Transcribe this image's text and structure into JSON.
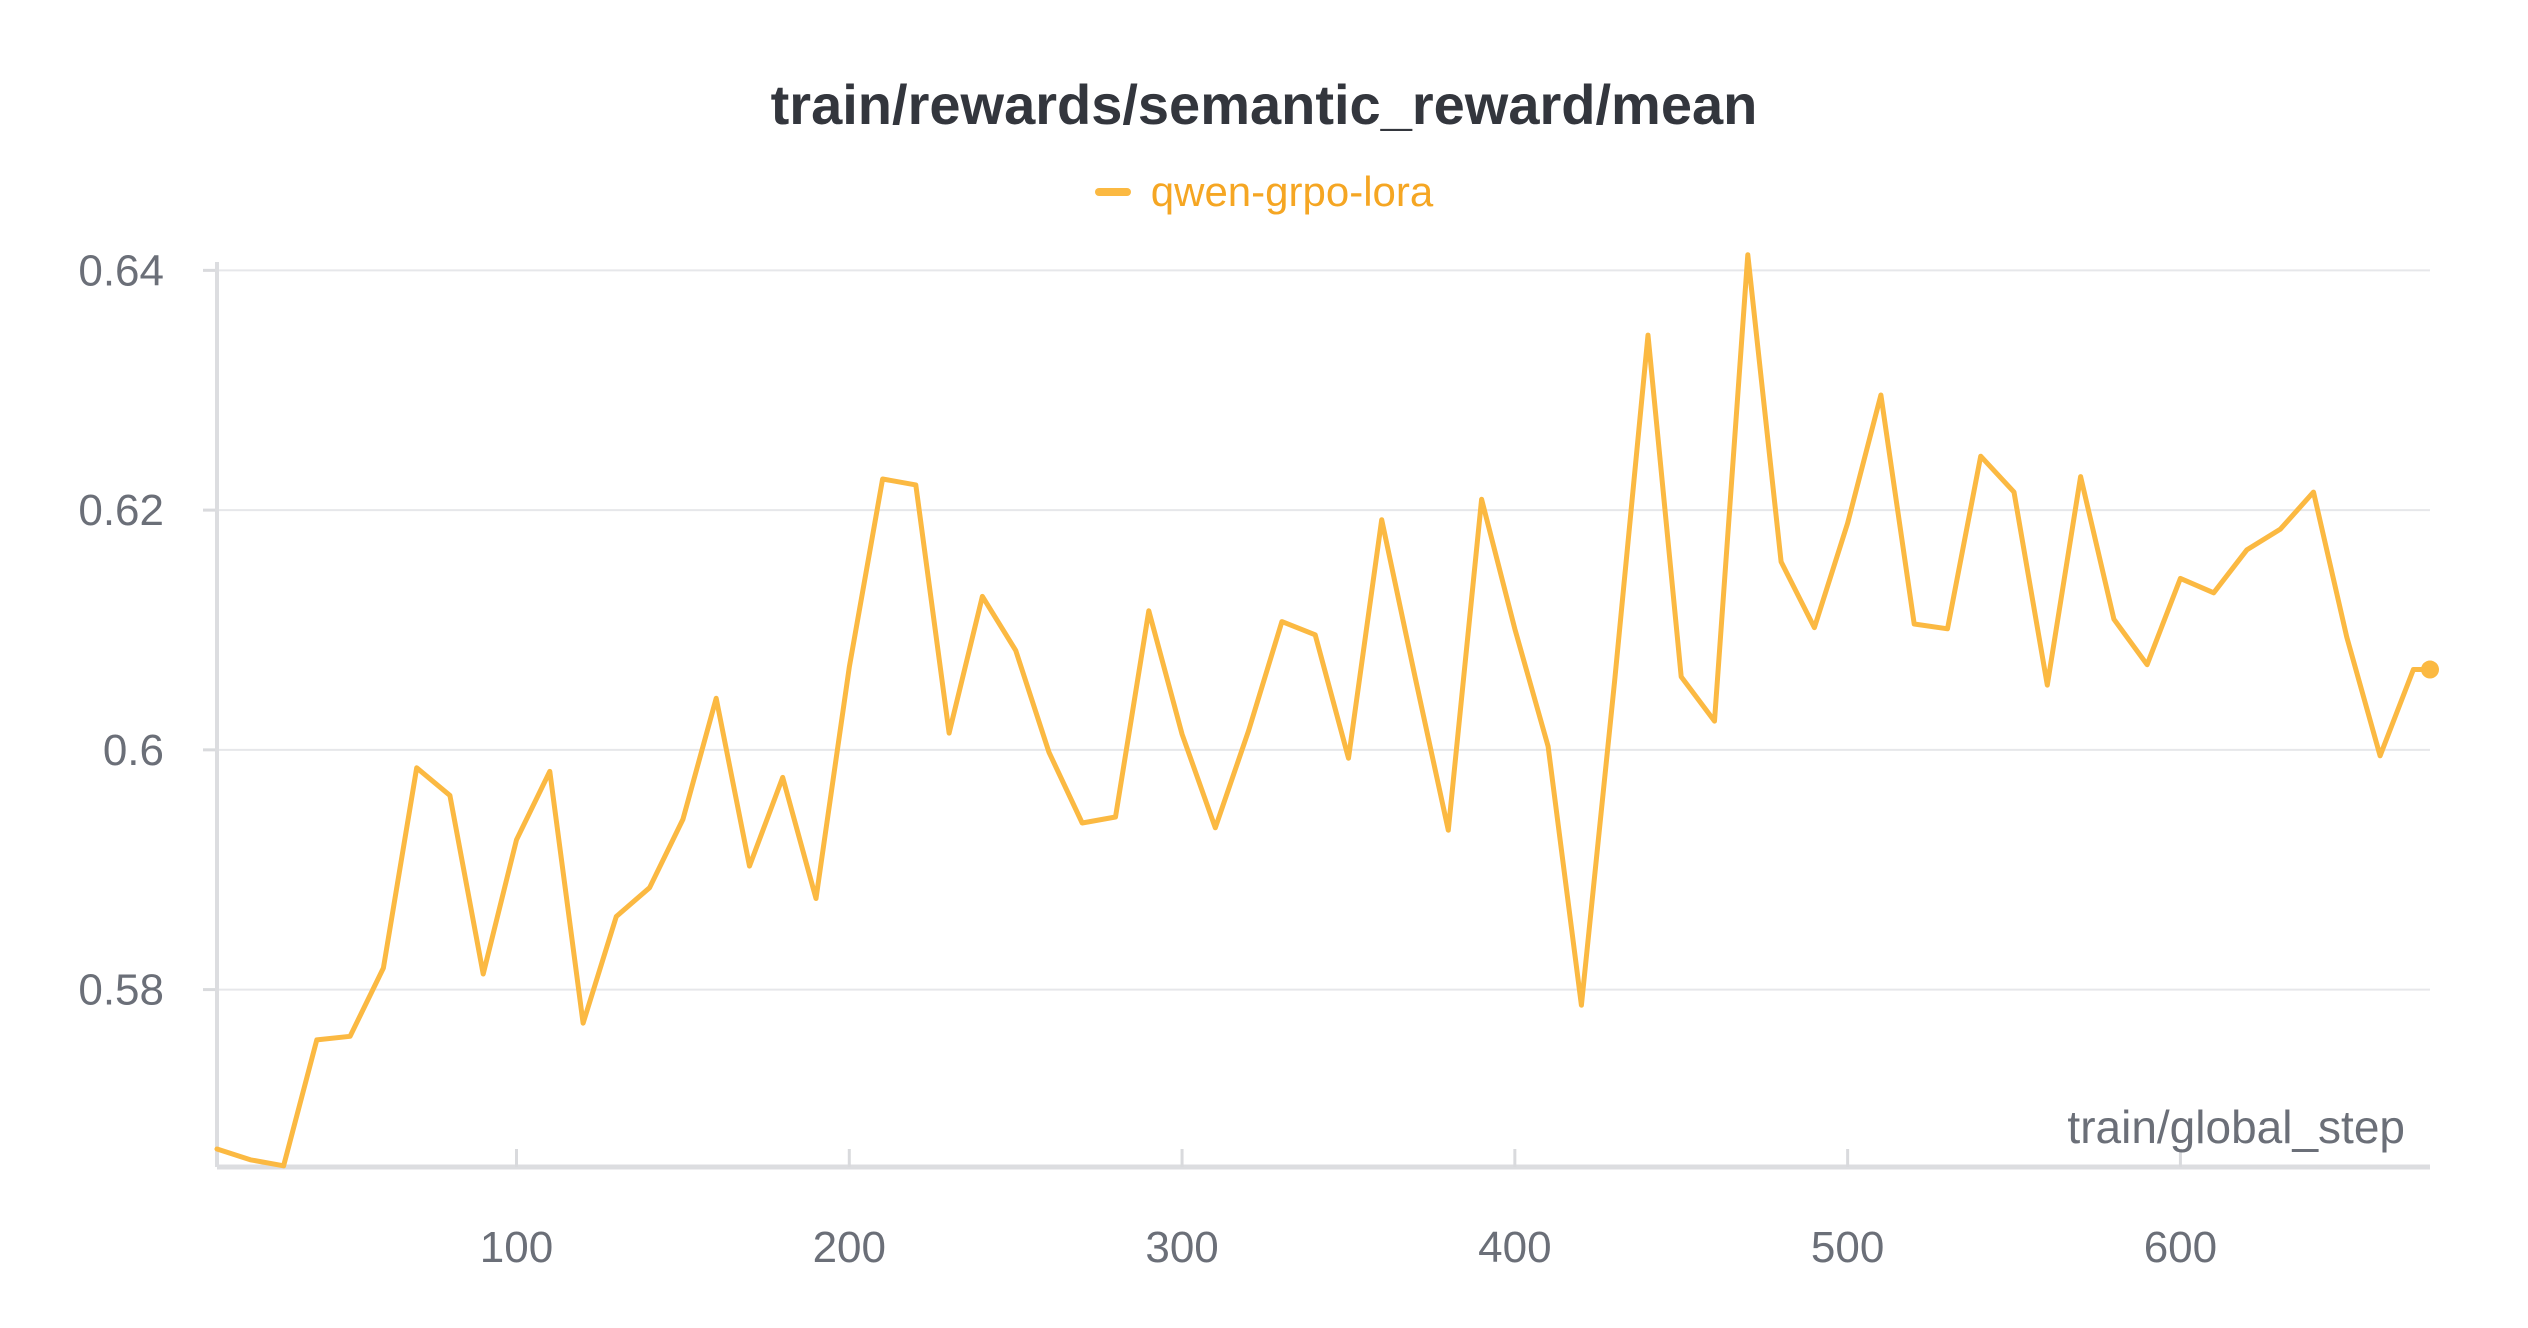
{
  "chart_data": {
    "type": "line",
    "title": "train/rewards/semantic_reward/mean",
    "xlabel": "train/global_step",
    "ylabel": "",
    "xlim": [
      10,
      675
    ],
    "ylim": [
      0.5652,
      0.6417
    ],
    "xticks": [
      100,
      200,
      300,
      400,
      500,
      600
    ],
    "xtick_labels": [
      "100",
      "200",
      "300",
      "400",
      "500",
      "600"
    ],
    "yticks": [
      0.58,
      0.6,
      0.62,
      0.64
    ],
    "ytick_labels": [
      "0.58",
      "0.6",
      "0.62",
      "0.64"
    ],
    "grid": true,
    "legend_position": "top-center",
    "series": [
      {
        "name": "qwen-grpo-lora",
        "color": "#fbb942",
        "x": [
          10,
          20,
          30,
          40,
          50,
          60,
          70,
          80,
          90,
          100,
          110,
          120,
          130,
          140,
          150,
          160,
          170,
          180,
          190,
          200,
          210,
          220,
          230,
          240,
          250,
          260,
          270,
          280,
          290,
          300,
          310,
          320,
          330,
          340,
          350,
          360,
          370,
          380,
          390,
          400,
          410,
          420,
          430,
          440,
          450,
          460,
          470,
          480,
          490,
          500,
          510,
          520,
          530,
          540,
          550,
          560,
          570,
          580,
          590,
          600,
          610,
          620,
          630,
          640,
          650,
          660,
          670,
          675
        ],
        "y": [
          0.5667,
          0.5658,
          0.5653,
          0.5758,
          0.5761,
          0.5818,
          0.5985,
          0.5962,
          0.5813,
          0.5925,
          0.5982,
          0.5772,
          0.5861,
          0.5885,
          0.5942,
          0.6043,
          0.5903,
          0.5977,
          0.5876,
          0.6069,
          0.6226,
          0.6221,
          0.6014,
          0.6128,
          0.6083,
          0.5998,
          0.5939,
          0.5944,
          0.6116,
          0.6013,
          0.5935,
          0.6016,
          0.6107,
          0.6096,
          0.5993,
          0.6192,
          0.6061,
          0.5933,
          0.6209,
          0.6101,
          0.6003,
          0.5787,
          0.6058,
          0.6346,
          0.6061,
          0.6024,
          0.6413,
          0.6157,
          0.6102,
          0.6189,
          0.6296,
          0.6105,
          0.6101,
          0.6245,
          0.6215,
          0.6054,
          0.6228,
          0.6109,
          0.6071,
          0.6143,
          0.6131,
          0.6167,
          0.6184,
          0.6215,
          0.6094,
          0.5995,
          0.6067,
          0.6067
        ]
      }
    ]
  }
}
